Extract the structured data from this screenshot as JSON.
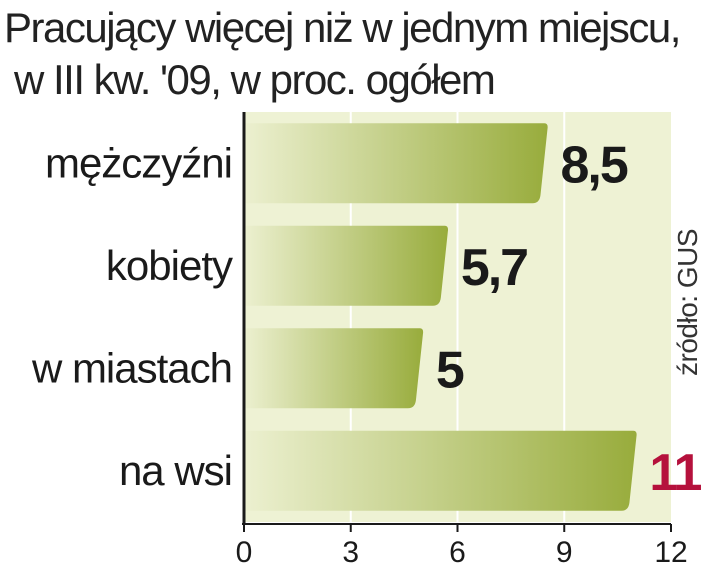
{
  "title_line1": "Pracujący więcej niż w jednym miejscu,",
  "title_line2": "w III kw. '09, w proc. ogółem",
  "source": "źródło: GUS",
  "colors": {
    "bar_light": "#e9eecb",
    "bar_dark": "#9aad3e",
    "band": "#eef2d4",
    "gridline": "#ffffff",
    "axis": "#1a1a1a",
    "value_default": "#1a1a1a",
    "value_highlight": "#b5113c"
  },
  "chart_data": {
    "type": "bar",
    "orientation": "horizontal",
    "categories": [
      "mężczyźni",
      "kobiety",
      "w miastach",
      "na wsi"
    ],
    "values": [
      8.5,
      5.7,
      5,
      11
    ],
    "value_labels": [
      "8,5",
      "5,7",
      "5",
      "11"
    ],
    "highlight_index": 3,
    "xlim": [
      0,
      12
    ],
    "xticks": [
      0,
      3,
      6,
      9,
      12
    ],
    "grid": true
  }
}
